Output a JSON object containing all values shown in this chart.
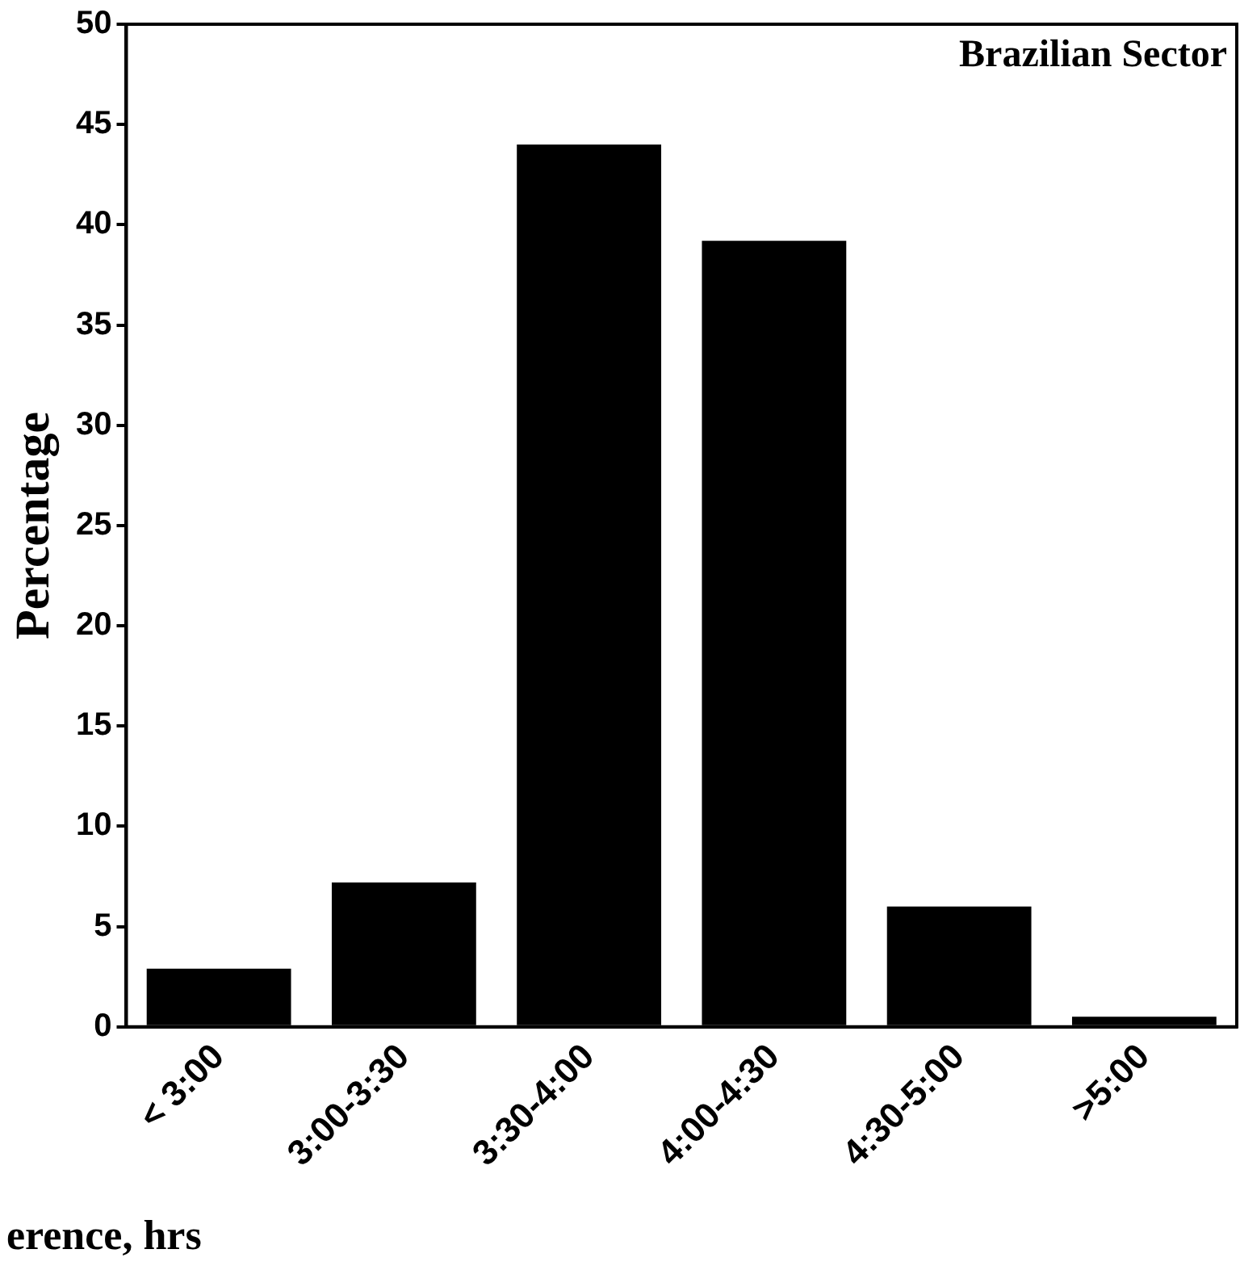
{
  "chart_data": {
    "type": "bar",
    "xlabel": "erence, hrs",
    "ylabel": "Percentage",
    "annotations": [
      "Brazilian Sector"
    ],
    "categories": [
      "< 3:00",
      "3:00-3:30",
      "3:30-4:00",
      "4:00-4:30",
      "4:30-5:00",
      ">5:00"
    ],
    "values": [
      2.9,
      7.2,
      44,
      39.2,
      6,
      0.5
    ],
    "color": "#000000",
    "ylim": [
      0,
      50
    ],
    "yticks": [
      0,
      5,
      10,
      15,
      20,
      25,
      30,
      35,
      40,
      45,
      50
    ],
    "grid": false,
    "legend": false
  }
}
